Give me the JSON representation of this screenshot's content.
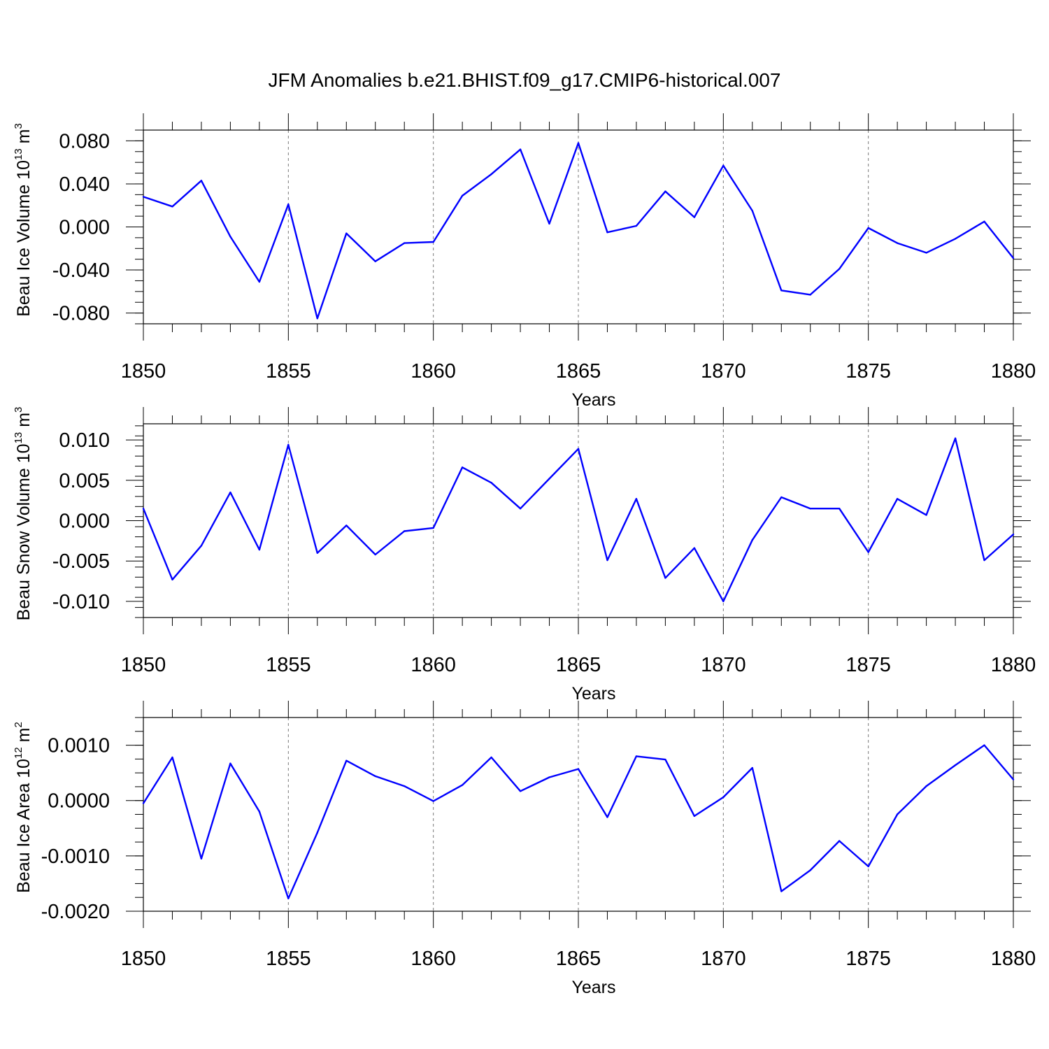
{
  "figure_title": "JFM Anomalies b.e21.BHIST.f09_g17.CMIP6-historical.007",
  "colors": {
    "line": "#0000ff",
    "axis": "#000000",
    "grid": "#7a7a7a"
  },
  "chart_data": [
    {
      "type": "line",
      "ylabel_prefix": "Beau Ice Volume 10",
      "ylabel_exp": "13",
      "ylabel_unit": " m",
      "ylabel_unit_exp": "3",
      "xlabel": "Years",
      "xlim": [
        1850,
        1880
      ],
      "ylim": [
        -0.09,
        0.09
      ],
      "x_ticks": [
        "1850",
        "1855",
        "1860",
        "1865",
        "1870",
        "1875",
        "1880"
      ],
      "y_ticks": [
        {
          "value": 0.08,
          "label": "0.080"
        },
        {
          "value": 0.04,
          "label": "0.040"
        },
        {
          "value": 0.0,
          "label": "0.000"
        },
        {
          "value": -0.04,
          "label": "-0.040"
        },
        {
          "value": -0.08,
          "label": "-0.080"
        }
      ],
      "x": [
        1850,
        1851,
        1852,
        1853,
        1854,
        1855,
        1856,
        1857,
        1858,
        1859,
        1860,
        1861,
        1862,
        1863,
        1864,
        1865,
        1866,
        1867,
        1868,
        1869,
        1870,
        1871,
        1872,
        1873,
        1874,
        1875,
        1876,
        1877,
        1878,
        1879,
        1880
      ],
      "values": [
        0.028,
        0.019,
        0.043,
        -0.009,
        -0.051,
        0.021,
        -0.085,
        -0.006,
        -0.032,
        -0.015,
        -0.014,
        0.029,
        0.049,
        0.072,
        0.003,
        0.078,
        -0.005,
        0.001,
        0.033,
        0.009,
        0.057,
        0.015,
        -0.059,
        -0.063,
        -0.039,
        -0.001,
        -0.015,
        -0.024,
        -0.011,
        0.005,
        -0.029
      ]
    },
    {
      "type": "line",
      "ylabel_prefix": "Beau Snow Volume 10",
      "ylabel_exp": "13",
      "ylabel_unit": " m",
      "ylabel_unit_exp": "3",
      "xlabel": "Years",
      "xlim": [
        1850,
        1880
      ],
      "ylim": [
        -0.012,
        0.012
      ],
      "x_ticks": [
        "1850",
        "1855",
        "1860",
        "1865",
        "1870",
        "1875",
        "1880"
      ],
      "y_ticks": [
        {
          "value": 0.01,
          "label": "0.010"
        },
        {
          "value": 0.005,
          "label": "0.005"
        },
        {
          "value": 0.0,
          "label": "0.000"
        },
        {
          "value": -0.005,
          "label": "-0.005"
        },
        {
          "value": -0.01,
          "label": "-0.010"
        }
      ],
      "x": [
        1850,
        1851,
        1852,
        1853,
        1854,
        1855,
        1856,
        1857,
        1858,
        1859,
        1860,
        1861,
        1862,
        1863,
        1864,
        1865,
        1866,
        1867,
        1868,
        1869,
        1870,
        1871,
        1872,
        1873,
        1874,
        1875,
        1876,
        1877,
        1878,
        1879,
        1880
      ],
      "values": [
        0.0015,
        -0.0073,
        -0.0031,
        0.0035,
        -0.0036,
        0.0094,
        -0.004,
        -0.0006,
        -0.0042,
        -0.0013,
        -0.0009,
        0.0066,
        0.0047,
        0.0015,
        0.0052,
        0.0089,
        -0.0049,
        0.0027,
        -0.0071,
        -0.0034,
        -0.01,
        -0.0024,
        0.0029,
        0.0015,
        0.0015,
        -0.0039,
        0.0027,
        0.0007,
        0.0102,
        -0.0049,
        -0.0017
      ]
    },
    {
      "type": "line",
      "ylabel_prefix": "Beau Ice Area 10",
      "ylabel_exp": "12",
      "ylabel_unit": " m",
      "ylabel_unit_exp": "2",
      "xlabel": "Years",
      "xlim": [
        1850,
        1880
      ],
      "ylim": [
        -0.002,
        0.0015
      ],
      "x_ticks": [
        "1850",
        "1855",
        "1860",
        "1865",
        "1870",
        "1875",
        "1880"
      ],
      "y_ticks": [
        {
          "value": 0.001,
          "label": "0.0010"
        },
        {
          "value": 0.0,
          "label": "0.0000"
        },
        {
          "value": -0.001,
          "label": "-0.0010"
        },
        {
          "value": -0.002,
          "label": "-0.0020"
        }
      ],
      "x": [
        1850,
        1851,
        1852,
        1853,
        1854,
        1855,
        1856,
        1857,
        1858,
        1859,
        1860,
        1861,
        1862,
        1863,
        1864,
        1865,
        1866,
        1867,
        1868,
        1869,
        1870,
        1871,
        1872,
        1873,
        1874,
        1875,
        1876,
        1877,
        1878,
        1879,
        1880
      ],
      "values": [
        -5e-05,
        0.00078,
        -0.00105,
        0.00067,
        -0.0002,
        -0.00177,
        -0.00058,
        0.00072,
        0.00044,
        0.00026,
        -1e-05,
        0.00028,
        0.00078,
        0.00017,
        0.00042,
        0.00057,
        -0.0003,
        0.0008,
        0.00074,
        -0.00028,
        6e-05,
        0.00059,
        -0.00164,
        -0.00126,
        -0.00073,
        -0.00119,
        -0.00025,
        0.00026,
        0.00064,
        0.001,
        0.00038
      ]
    }
  ]
}
